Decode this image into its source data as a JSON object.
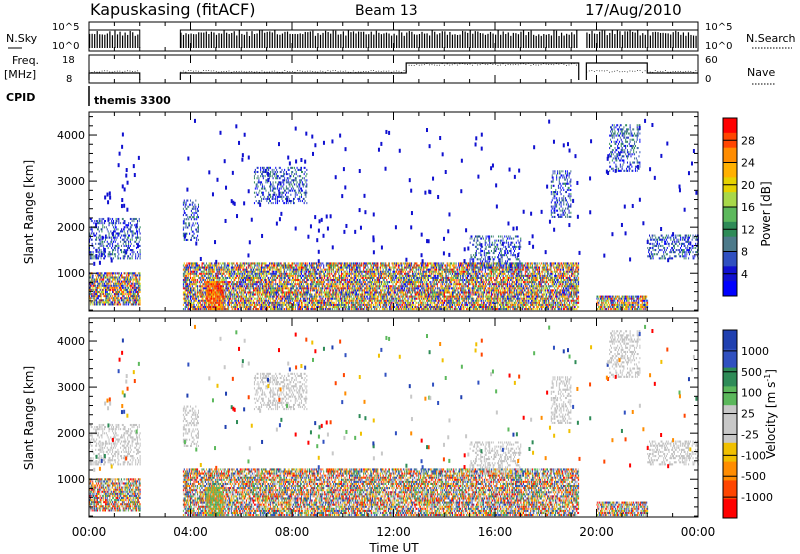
{
  "header": {
    "station": "Kapuskasing (fitACF)",
    "beam": "Beam 13",
    "date": "17/Aug/2010"
  },
  "summary_panels": {
    "nsky_label": "N.Sky",
    "nsky_ticks": [
      "10^5",
      "10^0"
    ],
    "nsearch_label": "N.Search",
    "nsearch_ticks": [
      "10^5",
      "10^0"
    ],
    "freq_label": "Freq.",
    "freq_unit": "[MHz]",
    "freq_ticks": [
      "18",
      "8"
    ],
    "nave_label": "Nave",
    "nave_ticks": [
      "60",
      "0"
    ],
    "cpid_label": "CPID",
    "cpid_value": "themis 3300"
  },
  "chart_data": [
    {
      "type": "heatmap",
      "name": "power",
      "ylabel": "Slant Range [km]",
      "xlabel": "Time UT",
      "xlim": [
        0,
        24
      ],
      "ylim": [
        180,
        4500
      ],
      "y_ticks": [
        1000,
        2000,
        3000,
        4000
      ],
      "colorbar_label": "Power [dB]",
      "colorbar_ticks": [
        "28",
        "24",
        "20",
        "16",
        "12",
        "8",
        "4"
      ],
      "colorbar_colors": [
        "#ff0000",
        "#ff4500",
        "#ff8c00",
        "#ffb000",
        "#e6d200",
        "#a8d84a",
        "#5cb85c",
        "#2e8b57",
        "#4d7a8a",
        "#3050c0",
        "#1010d0",
        "#0000ff"
      ],
      "no_data_intervals": [
        [
          2.0,
          3.6
        ],
        [
          19.3,
          19.6
        ]
      ],
      "echo_regions": [
        {
          "t": [
            0.0,
            2.0
          ],
          "range": [
            1300,
            2200
          ]
        },
        {
          "t": [
            0.0,
            2.0
          ],
          "range": [
            300,
            1000
          ]
        },
        {
          "t": [
            3.7,
            4.3
          ],
          "range": [
            1700,
            2600
          ]
        },
        {
          "t": [
            3.7,
            19.3
          ],
          "range": [
            200,
            1200
          ]
        },
        {
          "t": [
            4.6,
            5.3
          ],
          "range": [
            200,
            800
          ]
        },
        {
          "t": [
            6.5,
            8.6
          ],
          "range": [
            2500,
            3300
          ]
        },
        {
          "t": [
            15.0,
            17.0
          ],
          "range": [
            1100,
            1800
          ]
        },
        {
          "t": [
            18.2,
            19.0
          ],
          "range": [
            2200,
            3200
          ]
        },
        {
          "t": [
            20.5,
            21.7
          ],
          "range": [
            3200,
            4200
          ]
        },
        {
          "t": [
            20.0,
            22.0
          ],
          "range": [
            200,
            500
          ]
        },
        {
          "t": [
            22.0,
            24.0
          ],
          "range": [
            1300,
            1800
          ]
        }
      ]
    },
    {
      "type": "heatmap",
      "name": "velocity",
      "ylabel": "Slant Range [km]",
      "xlabel": "Time UT",
      "xlim": [
        0,
        24
      ],
      "ylim": [
        180,
        4500
      ],
      "y_ticks": [
        1000,
        2000,
        3000,
        4000
      ],
      "x_tick_labels": [
        "00:00",
        "04:00",
        "08:00",
        "12:00",
        "16:00",
        "20:00",
        "00:00"
      ],
      "colorbar_label": "Velocity [m s^-1]",
      "colorbar_ticks": [
        "1000",
        "500",
        "100",
        "25",
        "-25",
        "-100",
        "-500",
        "-1000"
      ],
      "colorbar_colors": [
        "#2040b0",
        "#3050c0",
        "#2e8b57",
        "#5cb85c",
        "#c8c8c8",
        "#c8c8c8",
        "#f0c000",
        "#ff8c00",
        "#ff4500",
        "#ff0000"
      ],
      "ground_scatter_color": "#c0c0c0"
    }
  ],
  "x_axis": {
    "title": "Time UT",
    "ticks": [
      "00:00",
      "04:00",
      "08:00",
      "12:00",
      "16:00",
      "20:00",
      "00:00"
    ]
  },
  "colorbars": {
    "power_label": "Power [dB]",
    "velocity_label": "Velocity [m s",
    "velocity_sup": "-1",
    "velocity_close": "]"
  }
}
